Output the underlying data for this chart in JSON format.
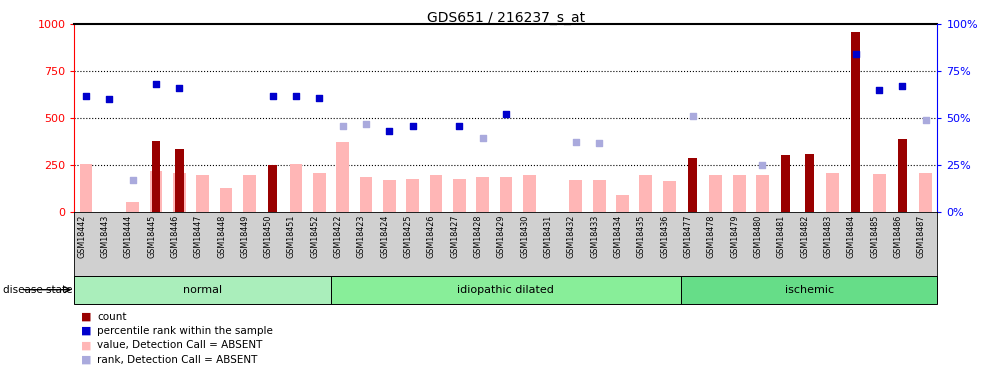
{
  "title": "GDS651 / 216237_s_at",
  "samples": [
    "GSM18442",
    "GSM18443",
    "GSM18444",
    "GSM18445",
    "GSM18446",
    "GSM18447",
    "GSM18448",
    "GSM18449",
    "GSM18450",
    "GSM18451",
    "GSM18452",
    "GSM18422",
    "GSM18423",
    "GSM18424",
    "GSM18425",
    "GSM18426",
    "GSM18427",
    "GSM18428",
    "GSM18429",
    "GSM18430",
    "GSM18431",
    "GSM18432",
    "GSM18433",
    "GSM18434",
    "GSM18435",
    "GSM18436",
    "GSM18477",
    "GSM18478",
    "GSM18479",
    "GSM18480",
    "GSM18481",
    "GSM18482",
    "GSM18483",
    "GSM18484",
    "GSM18485",
    "GSM18486",
    "GSM18487"
  ],
  "count_values": [
    null,
    null,
    null,
    380,
    335,
    null,
    null,
    null,
    250,
    null,
    null,
    null,
    null,
    null,
    null,
    null,
    null,
    null,
    null,
    null,
    null,
    null,
    null,
    null,
    null,
    null,
    290,
    null,
    null,
    null,
    305,
    310,
    null,
    960,
    null,
    390,
    null
  ],
  "value_absent": [
    255,
    null,
    55,
    220,
    210,
    195,
    130,
    195,
    null,
    255,
    205,
    375,
    185,
    170,
    175,
    195,
    175,
    185,
    185,
    195,
    null,
    170,
    170,
    90,
    195,
    165,
    null,
    195,
    195,
    195,
    null,
    null,
    205,
    null,
    200,
    null,
    205
  ],
  "rank_present": [
    620,
    600,
    null,
    680,
    660,
    null,
    null,
    null,
    620,
    620,
    610,
    null,
    null,
    430,
    460,
    null,
    460,
    null,
    520,
    null,
    null,
    null,
    null,
    null,
    null,
    null,
    null,
    null,
    null,
    null,
    null,
    null,
    null,
    840,
    650,
    670,
    null
  ],
  "rank_absent": [
    null,
    null,
    170,
    null,
    null,
    null,
    null,
    null,
    null,
    null,
    null,
    460,
    470,
    null,
    null,
    null,
    null,
    395,
    null,
    null,
    null,
    375,
    370,
    null,
    null,
    null,
    510,
    null,
    null,
    250,
    null,
    null,
    null,
    null,
    null,
    null,
    490
  ],
  "groups": [
    {
      "name": "normal",
      "start": 0,
      "end": 10,
      "color": "#aaeebb"
    },
    {
      "name": "idiopathic dilated",
      "start": 11,
      "end": 25,
      "color": "#88ee99"
    },
    {
      "name": "ischemic",
      "start": 26,
      "end": 36,
      "color": "#66dd88"
    }
  ],
  "left_ylim": [
    0,
    1000
  ],
  "right_ylim": [
    0,
    100
  ],
  "left_yticks": [
    0,
    250,
    500,
    750,
    1000
  ],
  "right_yticks": [
    0,
    25,
    50,
    75,
    100
  ],
  "bar_color_count": "#990000",
  "bar_color_absent": "#ffb6b6",
  "scatter_color_present": "#0000cc",
  "scatter_color_absent": "#aaaadd",
  "hline_vals": [
    250,
    500,
    750
  ],
  "legend_items": [
    {
      "color": "#990000",
      "label": "count"
    },
    {
      "color": "#0000cc",
      "label": "percentile rank within the sample"
    },
    {
      "color": "#ffb6b6",
      "label": "value, Detection Call = ABSENT"
    },
    {
      "color": "#aaaadd",
      "label": "rank, Detection Call = ABSENT"
    }
  ],
  "xtick_bg": "#d0d0d0"
}
